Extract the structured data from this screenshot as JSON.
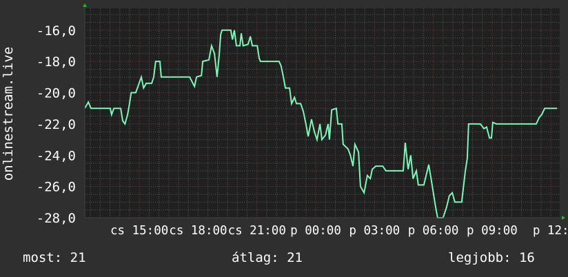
{
  "chart_data": {
    "type": "line",
    "ylabel": "onlinestream.live",
    "ylim": [
      -28,
      -14.6
    ],
    "y_ticks": [
      "-16,0",
      "-18,0",
      "-20,0",
      "-22,0",
      "-24,0",
      "-26,0",
      "-28,0"
    ],
    "y_tick_values": [
      -16,
      -18,
      -20,
      -22,
      -24,
      -26,
      -28
    ],
    "x_range": [
      "cs 12:13",
      "p 12:27"
    ],
    "x_ticks": [
      "cs 15:00",
      "cs 18:00",
      "cs 21:00",
      "p 00:00",
      "p 03:00",
      "p 06:00",
      "p 09:00",
      "p 12:"
    ],
    "grid": true,
    "colors": {
      "line": "#7ff5b8",
      "background": "#2f2f2f",
      "plot": "#202020",
      "grid_minor": "#5a5a5a",
      "grid_major": "#7a3a3a",
      "arrow": "#00d000"
    },
    "series": [
      {
        "points": [
          [
            "cs 12:13",
            -21.0
          ],
          [
            "cs 12:24",
            -20.6
          ],
          [
            "cs 12:32",
            -21.0
          ],
          [
            "cs 13:31",
            -21.0
          ],
          [
            "cs 13:35",
            -21.4
          ],
          [
            "cs 13:42",
            -21.0
          ],
          [
            "cs 14:03",
            -21.0
          ],
          [
            "cs 14:09",
            -21.8
          ],
          [
            "cs 14:16",
            -22.0
          ],
          [
            "cs 14:24",
            -21.4
          ],
          [
            "cs 14:30",
            -20.7
          ],
          [
            "cs 14:35",
            -20.0
          ],
          [
            "cs 14:49",
            -20.0
          ],
          [
            "cs 14:56",
            -19.6
          ],
          [
            "cs 15:06",
            -19.0
          ],
          [
            "cs 15:13",
            -19.7
          ],
          [
            "cs 15:21",
            -19.4
          ],
          [
            "cs 15:38",
            -19.4
          ],
          [
            "cs 15:44",
            -19.0
          ],
          [
            "cs 15:50",
            -18.0
          ],
          [
            "cs 16:03",
            -18.0
          ],
          [
            "cs 16:07",
            -19.0
          ],
          [
            "cs 17:34",
            -19.0
          ],
          [
            "cs 17:49",
            -19.6
          ],
          [
            "cs 17:55",
            -19.0
          ],
          [
            "cs 18:10",
            -18.9
          ],
          [
            "cs 18:14",
            -18.0
          ],
          [
            "cs 18:33",
            -17.9
          ],
          [
            "cs 18:41",
            -17.0
          ],
          [
            "cs 18:50",
            -17.5
          ],
          [
            "cs 18:58",
            -19.0
          ],
          [
            "cs 19:05",
            -17.5
          ],
          [
            "cs 19:09",
            -16.3
          ],
          [
            "cs 19:13",
            -16.0
          ],
          [
            "cs 19:40",
            -16.0
          ],
          [
            "cs 19:45",
            -16.6
          ],
          [
            "cs 19:51",
            -16.0
          ],
          [
            "cs 19:57",
            -17.0
          ],
          [
            "cs 20:08",
            -17.0
          ],
          [
            "cs 20:12",
            -16.2
          ],
          [
            "cs 20:18",
            -17.0
          ],
          [
            "cs 20:33",
            -16.9
          ],
          [
            "cs 20:40",
            -16.4
          ],
          [
            "cs 20:46",
            -17.0
          ],
          [
            "cs 21:01",
            -17.0
          ],
          [
            "cs 21:07",
            -17.8
          ],
          [
            "cs 21:11",
            -18.0
          ],
          [
            "cs 22:08",
            -18.0
          ],
          [
            "cs 22:14",
            -18.3
          ],
          [
            "cs 22:21",
            -19.0
          ],
          [
            "cs 22:27",
            -19.7
          ],
          [
            "cs 22:40",
            -19.7
          ],
          [
            "cs 22:46",
            -20.7
          ],
          [
            "cs 22:55",
            -20.3
          ],
          [
            "cs 23:01",
            -20.7
          ],
          [
            "cs 23:14",
            -20.7
          ],
          [
            "cs 23:22",
            -21.2
          ],
          [
            "cs 23:30",
            -22.0
          ],
          [
            "cs 23:37",
            -22.8
          ],
          [
            "cs 23:47",
            -21.7
          ],
          [
            "cs 23:56",
            -22.5
          ],
          [
            "p 00:04",
            -23.0
          ],
          [
            "p 00:13",
            -22.0
          ],
          [
            "p 00:19",
            -23.0
          ],
          [
            "p 00:30",
            -22.7
          ],
          [
            "p 00:38",
            -22.0
          ],
          [
            "p 00:42",
            -23.0
          ],
          [
            "p 00:49",
            -21.1
          ],
          [
            "p 01:03",
            -21.0
          ],
          [
            "p 01:08",
            -22.0
          ],
          [
            "p 01:20",
            -22.0
          ],
          [
            "p 01:24",
            -23.3
          ],
          [
            "p 01:39",
            -23.6
          ],
          [
            "p 01:46",
            -24.0
          ],
          [
            "p 01:54",
            -24.7
          ],
          [
            "p 02:00",
            -23.3
          ],
          [
            "p 02:11",
            -23.8
          ],
          [
            "p 02:17",
            -26.0
          ],
          [
            "p 02:28",
            -26.4
          ],
          [
            "p 02:38",
            -25.3
          ],
          [
            "p 02:47",
            -25.5
          ],
          [
            "p 02:53",
            -24.9
          ],
          [
            "p 03:04",
            -24.7
          ],
          [
            "p 03:25",
            -24.7
          ],
          [
            "p 03:35",
            -25.0
          ],
          [
            "p 04:28",
            -25.0
          ],
          [
            "p 04:34",
            -23.2
          ],
          [
            "p 04:43",
            -24.9
          ],
          [
            "p 04:51",
            -24.0
          ],
          [
            "p 04:58",
            -25.5
          ],
          [
            "p 05:08",
            -25.0
          ],
          [
            "p 05:14",
            -25.9
          ],
          [
            "p 05:31",
            -25.9
          ],
          [
            "p 05:46",
            -24.6
          ],
          [
            "p 05:57",
            -26.0
          ],
          [
            "p 06:07",
            -27.3
          ],
          [
            "p 06:13",
            -28.0
          ],
          [
            "p 06:30",
            -28.0
          ],
          [
            "p 06:41",
            -27.3
          ],
          [
            "p 06:49",
            -26.6
          ],
          [
            "p 06:58",
            -26.4
          ],
          [
            "p 07:06",
            -27.0
          ],
          [
            "p 07:27",
            -27.0
          ],
          [
            "p 07:38",
            -25.0
          ],
          [
            "p 07:44",
            -24.2
          ],
          [
            "p 07:48",
            -22.0
          ],
          [
            "p 08:24",
            -22.0
          ],
          [
            "p 08:35",
            -22.3
          ],
          [
            "p 08:43",
            -22.2
          ],
          [
            "p 08:52",
            -22.9
          ],
          [
            "p 08:58",
            -22.9
          ],
          [
            "p 09:02",
            -21.9
          ],
          [
            "p 09:13",
            -22.0
          ],
          [
            "p 11:15",
            -22.0
          ],
          [
            "p 11:24",
            -21.6
          ],
          [
            "p 11:32",
            -21.4
          ],
          [
            "p 11:41",
            -21.0
          ],
          [
            "p 12:19",
            -21.0
          ]
        ]
      }
    ]
  },
  "legend": {
    "current": "most: 21",
    "average": "átlag: 21",
    "max": "legjobb: 16"
  }
}
